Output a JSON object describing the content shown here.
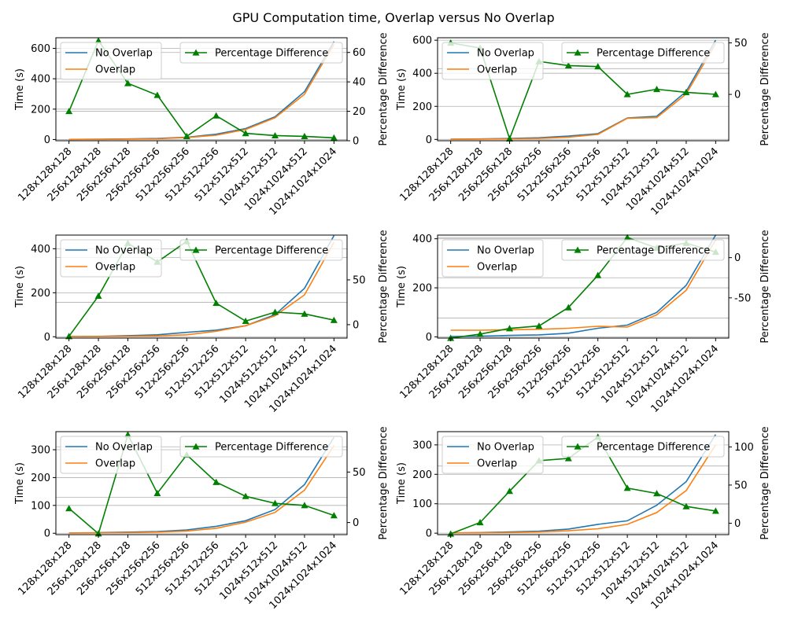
{
  "figure": {
    "title": "GPU Computation time, Overlap versus No Overlap"
  },
  "colors": {
    "no_overlap": "#1f77b4",
    "overlap": "#ff7f0e",
    "pct_diff": "#008000",
    "grid": "#b0b0b0",
    "axis": "#000000"
  },
  "chart_data": [
    {
      "type": "line",
      "categories": [
        "128x128x128",
        "256x128x128",
        "256x256x128",
        "256x256x256",
        "512x256x256",
        "512x512x256",
        "512x512x512",
        "1024x512x512",
        "1024x1024x512",
        "1024x1024x1024"
      ],
      "ylabel": "Time (s)",
      "y2label": "Percentage Difference",
      "ylim": [
        -8,
        670
      ],
      "yticks": [
        0,
        200,
        400,
        600
      ],
      "y2lim": [
        0,
        70
      ],
      "y2ticks": [
        0,
        20,
        40,
        60
      ],
      "hgrid_right": [
        20,
        40,
        60
      ],
      "series": [
        {
          "name": "No Overlap",
          "axis": "left",
          "values": [
            1,
            2,
            4,
            7,
            15,
            35,
            72,
            150,
            315,
            645
          ]
        },
        {
          "name": "Overlap",
          "axis": "left",
          "values": [
            1,
            1,
            3,
            5,
            13,
            28,
            66,
            143,
            298,
            628
          ]
        },
        {
          "name": "Percentage Difference",
          "axis": "right",
          "marker": "triangle",
          "values": [
            20,
            68,
            39,
            31,
            3,
            17,
            5,
            3.5,
            3,
            2
          ]
        }
      ],
      "grid": true,
      "legend": "top"
    },
    {
      "type": "line",
      "categories": [
        "128x128x128",
        "256x128x128",
        "256x256x128",
        "256x256x256",
        "512x256x256",
        "512x512x256",
        "512x512x512",
        "1024x512x512",
        "1024x1024x512",
        "1024x1024x1024"
      ],
      "ylabel": "Time (s)",
      "y2label": "Percentage Difference",
      "ylim": [
        -8,
        615
      ],
      "yticks": [
        0,
        200,
        400,
        600
      ],
      "y2lim": [
        -45,
        55
      ],
      "y2ticks": [
        0,
        50
      ],
      "hgrid_right": [
        25
      ],
      "series": [
        {
          "name": "No Overlap",
          "axis": "left",
          "values": [
            1,
            3,
            6,
            10,
            20,
            35,
            130,
            140,
            290,
            600
          ]
        },
        {
          "name": "Overlap",
          "axis": "left",
          "values": [
            1,
            2,
            4,
            6,
            14,
            30,
            128,
            132,
            275,
            580
          ]
        },
        {
          "name": "Percentage Difference",
          "axis": "right",
          "marker": "triangle",
          "values": [
            50,
            45,
            -43,
            32,
            28,
            27,
            0,
            5,
            2,
            0
          ]
        }
      ],
      "grid": true,
      "legend": "top"
    },
    {
      "type": "line",
      "categories": [
        "128x128x128",
        "256x128x128",
        "256x256x128",
        "256x256x256",
        "512x256x256",
        "512x512x256",
        "512x512x512",
        "1024x512x512",
        "1024x1024x512",
        "1024x1024x1024"
      ],
      "ylabel": "Time (s)",
      "y2label": "Percentage Difference",
      "ylim": [
        -6,
        462
      ],
      "yticks": [
        0,
        200,
        400
      ],
      "y2lim": [
        -15,
        100
      ],
      "y2ticks": [
        0,
        50
      ],
      "hgrid_right": [
        25,
        75
      ],
      "series": [
        {
          "name": "No Overlap",
          "axis": "left",
          "values": [
            1,
            2,
            5,
            9,
            20,
            30,
            50,
            100,
            220,
            460
          ]
        },
        {
          "name": "Overlap",
          "axis": "left",
          "values": [
            1,
            1,
            2,
            4,
            9,
            25,
            50,
            95,
            190,
            430
          ]
        },
        {
          "name": "Percentage Difference",
          "axis": "right",
          "marker": "triangle",
          "values": [
            -13,
            32,
            91,
            70,
            93,
            24,
            4,
            14,
            12,
            5
          ]
        }
      ],
      "grid": true,
      "legend": "top"
    },
    {
      "type": "line",
      "categories": [
        "128x128x128",
        "256x128x128",
        "256x256x128",
        "256x256x256",
        "512x256x256",
        "512x512x256",
        "512x512x512",
        "1024x512x512",
        "1024x1024x512",
        "1024x1024x1024"
      ],
      "ylabel": "Time (s)",
      "y2label": "Percentage Difference",
      "ylim": [
        -5,
        415
      ],
      "yticks": [
        0,
        200,
        400
      ],
      "y2lim": [
        -100,
        28
      ],
      "y2ticks": [
        -50,
        0
      ],
      "hgrid_right": [
        -75,
        -25,
        25
      ],
      "series": [
        {
          "name": "No Overlap",
          "axis": "left",
          "values": [
            1,
            3,
            6,
            8,
            15,
            35,
            48,
            100,
            210,
            415
          ]
        },
        {
          "name": "Overlap",
          "axis": "left",
          "values": [
            27,
            27,
            29,
            31,
            35,
            43,
            40,
            90,
            190,
            395
          ]
        },
        {
          "name": "Percentage Difference",
          "axis": "right",
          "marker": "triangle",
          "values": [
            -100,
            -95,
            -88,
            -85,
            -62,
            -22,
            25,
            12,
            18,
            7
          ]
        }
      ],
      "grid": true,
      "legend": "top"
    },
    {
      "type": "line",
      "categories": [
        "128x128x128",
        "256x128x128",
        "256x256x128",
        "256x256x256",
        "512x256x256",
        "512x512x256",
        "512x512x512",
        "1024x512x512",
        "1024x1024x512",
        "1024x1024x1024"
      ],
      "ylabel": "Time (s)",
      "y2label": "Percentage Difference",
      "ylim": [
        -5,
        365
      ],
      "yticks": [
        0,
        100,
        200,
        300
      ],
      "y2lim": [
        -12,
        90
      ],
      "y2ticks": [
        0,
        50
      ],
      "hgrid_right": [
        25,
        75
      ],
      "series": [
        {
          "name": "No Overlap",
          "axis": "left",
          "values": [
            1,
            2,
            4,
            6,
            12,
            25,
            45,
            85,
            175,
            345
          ]
        },
        {
          "name": "Overlap",
          "axis": "left",
          "values": [
            1,
            1,
            2,
            4,
            8,
            18,
            40,
            75,
            155,
            315
          ]
        },
        {
          "name": "Percentage Difference",
          "axis": "right",
          "marker": "triangle",
          "values": [
            14,
            -11,
            87,
            29,
            67,
            40,
            26,
            19,
            17,
            7
          ]
        }
      ],
      "grid": true,
      "legend": "top"
    },
    {
      "type": "line",
      "categories": [
        "128x128x128",
        "256x128x128",
        "256x256x128",
        "256x256x256",
        "512x256x256",
        "512x512x256",
        "512x512x512",
        "1024x512x512",
        "1024x1024x512",
        "1024x1024x1024"
      ],
      "ylabel": "Time (s)",
      "y2label": "Percentage Difference",
      "ylim": [
        -5,
        345
      ],
      "yticks": [
        0,
        100,
        200,
        300
      ],
      "y2lim": [
        -15,
        120
      ],
      "y2ticks": [
        0,
        50,
        100
      ],
      "hgrid_right": [
        25,
        75
      ],
      "series": [
        {
          "name": "No Overlap",
          "axis": "left",
          "values": [
            1,
            2,
            4,
            7,
            14,
            30,
            42,
            95,
            175,
            335
          ]
        },
        {
          "name": "Overlap",
          "axis": "left",
          "values": [
            1,
            1,
            2,
            4,
            8,
            15,
            30,
            70,
            145,
            300
          ]
        },
        {
          "name": "Percentage Difference",
          "axis": "right",
          "marker": "triangle",
          "values": [
            -14,
            1,
            42,
            82,
            85,
            113,
            46,
            39,
            22,
            16
          ]
        }
      ],
      "grid": true,
      "legend": "top"
    }
  ]
}
